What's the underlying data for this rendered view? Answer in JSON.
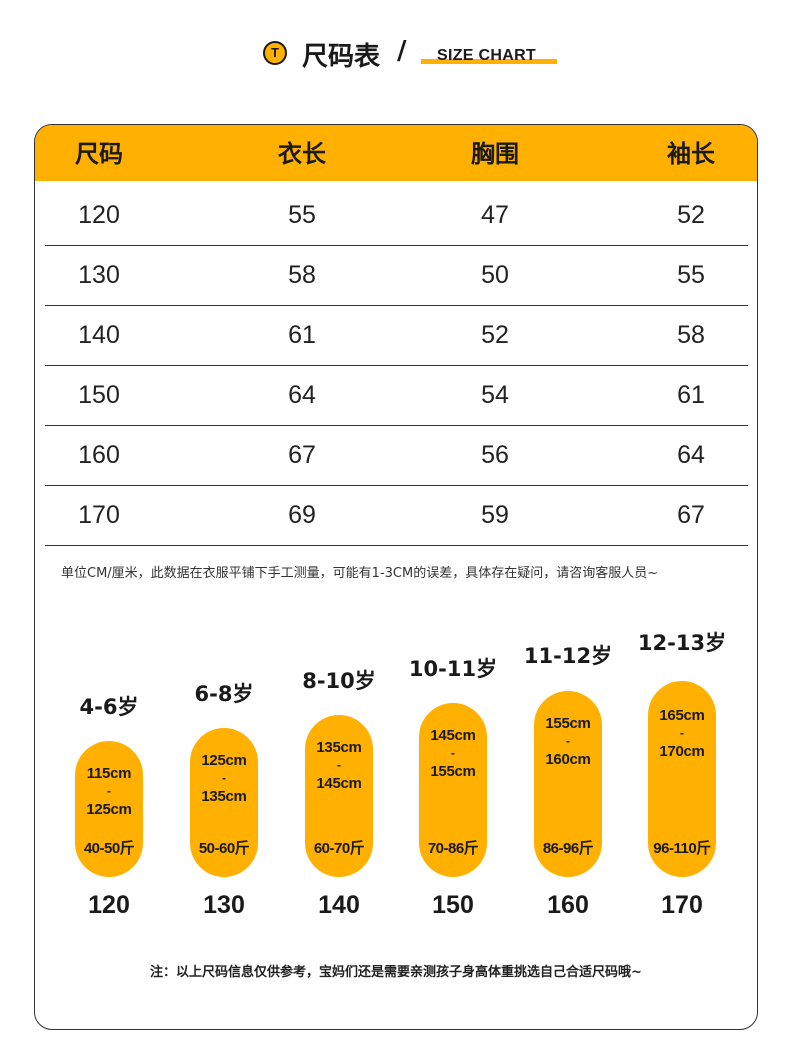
{
  "header": {
    "icon_letter": "T",
    "title_cn": "尺码表",
    "slash": "/",
    "title_en": "SIZE CHART",
    "accent_color": "#ffb000"
  },
  "table": {
    "columns": [
      "尺码",
      "衣长",
      "胸围",
      "袖长"
    ],
    "rows": [
      [
        "120",
        "55",
        "47",
        "52"
      ],
      [
        "130",
        "58",
        "50",
        "55"
      ],
      [
        "140",
        "61",
        "52",
        "58"
      ],
      [
        "150",
        "64",
        "54",
        "61"
      ],
      [
        "160",
        "67",
        "56",
        "64"
      ],
      [
        "170",
        "69",
        "59",
        "67"
      ]
    ]
  },
  "note_units": "单位CM/厘米，此数据在衣服平铺下手工测量，可能有1-3CM的误差，具体存在疑问，请咨询客服人员~",
  "size_guide": [
    {
      "age": "4-6岁",
      "height_from": "115cm",
      "dash": "-",
      "height_to": "125cm",
      "weight": "40-50斤",
      "size": "120"
    },
    {
      "age": "6-8岁",
      "height_from": "125cm",
      "dash": "-",
      "height_to": "135cm",
      "weight": "50-60斤",
      "size": "130"
    },
    {
      "age": "8-10岁",
      "height_from": "135cm",
      "dash": "-",
      "height_to": "145cm",
      "weight": "60-70斤",
      "size": "140"
    },
    {
      "age": "10-11岁",
      "height_from": "145cm",
      "dash": "-",
      "height_to": "155cm",
      "weight": "70-86斤",
      "size": "150"
    },
    {
      "age": "11-12岁",
      "height_from": "155cm",
      "dash": "-",
      "height_to": "160cm",
      "weight": "86-96斤",
      "size": "160"
    },
    {
      "age": "12-13岁",
      "height_from": "165cm",
      "dash": "-",
      "height_to": "170cm",
      "weight": "96-110斤",
      "size": "170"
    }
  ],
  "note_bottom": "注：以上尺码信息仅供参考，宝妈们还是需要亲测孩子身高体重挑选自己合适尺码哦~"
}
